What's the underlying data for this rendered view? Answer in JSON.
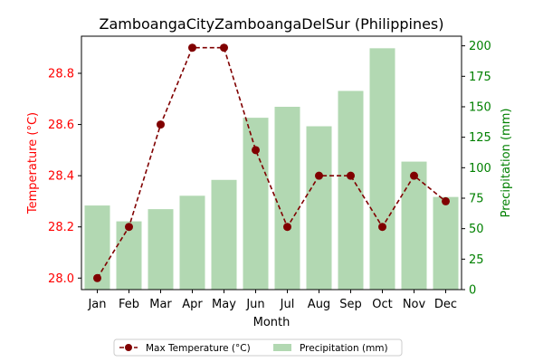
{
  "chart_data": {
    "type": "bar+line",
    "title": "ZamboangaCityZamboangaDelSur (Philippines)",
    "xlabel": "Month",
    "categories": [
      "Jan",
      "Feb",
      "Mar",
      "Apr",
      "May",
      "Jun",
      "Jul",
      "Aug",
      "Sep",
      "Oct",
      "Nov",
      "Dec"
    ],
    "series": [
      {
        "name": "Max Temperature (°C)",
        "type": "line",
        "axis": "left",
        "color": "#800000",
        "values": [
          28.0,
          28.2,
          28.6,
          28.9,
          28.9,
          28.5,
          28.2,
          28.4,
          28.4,
          28.2,
          28.4,
          28.3
        ]
      },
      {
        "name": "Precipitation (mm)",
        "type": "bar",
        "axis": "right",
        "color": "#b2d8b2",
        "values": [
          69,
          56,
          66,
          77,
          90,
          141,
          150,
          134,
          163,
          198,
          105,
          76
        ]
      }
    ],
    "y_left": {
      "label": "Temperature (°C)",
      "color": "#ff0000",
      "ylim": [
        27.955,
        28.945
      ],
      "ticks": [
        28.0,
        28.2,
        28.4,
        28.6,
        28.8
      ],
      "tick_labels": [
        "28.0",
        "28.2",
        "28.4",
        "28.6",
        "28.8"
      ]
    },
    "y_right": {
      "label": "Precipitation (mm)",
      "color": "#008000",
      "ylim": [
        0,
        207.9
      ],
      "ticks": [
        0,
        25,
        50,
        75,
        100,
        125,
        150,
        175,
        200
      ],
      "tick_labels": [
        "0",
        "25",
        "50",
        "75",
        "100",
        "125",
        "150",
        "175",
        "200"
      ]
    },
    "legend_position": "bottom-center",
    "grid": false
  }
}
